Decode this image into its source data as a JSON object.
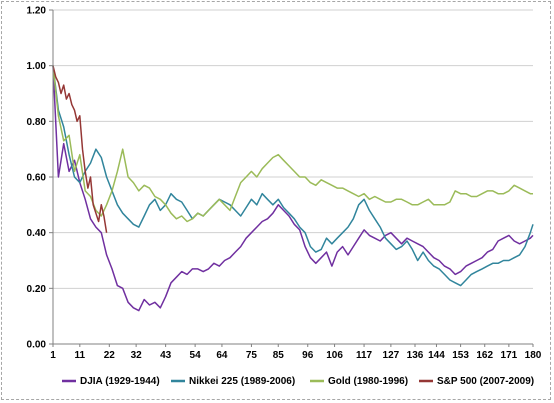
{
  "chart_data": {
    "type": "line",
    "title": "",
    "xlabel": "",
    "ylabel": "",
    "xlim": [
      1,
      180
    ],
    "ylim": [
      0,
      1.2
    ],
    "y_ticks": [
      0,
      0.2,
      0.4,
      0.6,
      0.8,
      1.0,
      1.2
    ],
    "y_tick_labels": [
      "0.00",
      "0.20",
      "0.40",
      "0.60",
      "0.80",
      "1.00",
      "1.20"
    ],
    "x_ticks": [
      1,
      11,
      22,
      32,
      43,
      54,
      64,
      75,
      85,
      96,
      106,
      117,
      127,
      136,
      144,
      153,
      162,
      171,
      180
    ],
    "x_tick_labels": [
      "1",
      "11",
      "22",
      "32",
      "43",
      "54",
      "64",
      "75",
      "85",
      "96",
      "106",
      "117",
      "127",
      "136",
      "144",
      "153",
      "162",
      "171",
      "180"
    ],
    "grid": "horizontal",
    "legend_position": "bottom",
    "series": [
      {
        "name": "DJIA (1929-1944)",
        "color": "#7030a0",
        "x": [
          1,
          3,
          5,
          7,
          9,
          11,
          13,
          15,
          17,
          19,
          21,
          23,
          25,
          27,
          29,
          31,
          33,
          35,
          37,
          39,
          41,
          43,
          45,
          47,
          49,
          51,
          53,
          55,
          57,
          59,
          61,
          63,
          65,
          67,
          69,
          71,
          73,
          75,
          77,
          79,
          81,
          83,
          85,
          87,
          89,
          91,
          93,
          95,
          97,
          99,
          101,
          103,
          105,
          107,
          109,
          111,
          113,
          115,
          117,
          119,
          121,
          123,
          125,
          127,
          129,
          131,
          133,
          135,
          137,
          139,
          141,
          143,
          145,
          147,
          149,
          151,
          153,
          155,
          157,
          159,
          161,
          163,
          165,
          167,
          169,
          171,
          173,
          175,
          177,
          179,
          180
        ],
        "y": [
          1.0,
          0.6,
          0.72,
          0.62,
          0.66,
          0.58,
          0.52,
          0.45,
          0.42,
          0.4,
          0.32,
          0.27,
          0.21,
          0.2,
          0.15,
          0.13,
          0.12,
          0.16,
          0.14,
          0.15,
          0.13,
          0.17,
          0.22,
          0.24,
          0.26,
          0.25,
          0.27,
          0.27,
          0.26,
          0.27,
          0.29,
          0.28,
          0.3,
          0.31,
          0.33,
          0.35,
          0.38,
          0.4,
          0.42,
          0.44,
          0.45,
          0.47,
          0.5,
          0.48,
          0.46,
          0.43,
          0.41,
          0.35,
          0.31,
          0.29,
          0.31,
          0.33,
          0.28,
          0.33,
          0.35,
          0.32,
          0.35,
          0.38,
          0.41,
          0.39,
          0.38,
          0.37,
          0.39,
          0.4,
          0.38,
          0.36,
          0.38,
          0.37,
          0.36,
          0.35,
          0.33,
          0.31,
          0.3,
          0.28,
          0.27,
          0.25,
          0.26,
          0.28,
          0.29,
          0.3,
          0.31,
          0.33,
          0.34,
          0.37,
          0.38,
          0.39,
          0.37,
          0.36,
          0.37,
          0.38,
          0.39
        ]
      },
      {
        "name": "Nikkei 225 (1989-2006)",
        "color": "#31859c",
        "x": [
          1,
          3,
          5,
          7,
          9,
          11,
          13,
          15,
          17,
          19,
          21,
          23,
          25,
          27,
          29,
          31,
          33,
          35,
          37,
          39,
          41,
          43,
          45,
          47,
          49,
          51,
          53,
          55,
          57,
          59,
          61,
          63,
          65,
          67,
          69,
          71,
          73,
          75,
          77,
          79,
          81,
          83,
          85,
          87,
          89,
          91,
          93,
          95,
          97,
          99,
          101,
          103,
          105,
          107,
          109,
          111,
          113,
          115,
          117,
          119,
          121,
          123,
          125,
          127,
          129,
          131,
          133,
          135,
          137,
          139,
          141,
          143,
          145,
          147,
          149,
          151,
          153,
          155,
          157,
          159,
          161,
          163,
          165,
          167,
          169,
          171,
          173,
          175,
          177,
          179,
          180
        ],
        "y": [
          1.0,
          0.84,
          0.78,
          0.68,
          0.6,
          0.58,
          0.62,
          0.65,
          0.7,
          0.67,
          0.6,
          0.55,
          0.5,
          0.47,
          0.45,
          0.43,
          0.42,
          0.46,
          0.5,
          0.52,
          0.48,
          0.5,
          0.54,
          0.52,
          0.51,
          0.48,
          0.45,
          0.47,
          0.46,
          0.48,
          0.5,
          0.52,
          0.51,
          0.5,
          0.48,
          0.46,
          0.49,
          0.52,
          0.5,
          0.54,
          0.52,
          0.5,
          0.52,
          0.49,
          0.47,
          0.45,
          0.42,
          0.4,
          0.35,
          0.33,
          0.34,
          0.38,
          0.36,
          0.38,
          0.4,
          0.42,
          0.45,
          0.5,
          0.52,
          0.48,
          0.45,
          0.42,
          0.38,
          0.36,
          0.34,
          0.35,
          0.37,
          0.34,
          0.3,
          0.33,
          0.3,
          0.28,
          0.27,
          0.25,
          0.23,
          0.22,
          0.21,
          0.23,
          0.25,
          0.26,
          0.27,
          0.28,
          0.29,
          0.29,
          0.3,
          0.3,
          0.31,
          0.32,
          0.35,
          0.4,
          0.43
        ]
      },
      {
        "name": "Gold (1980-1996)",
        "color": "#9bbb59",
        "x": [
          1,
          3,
          5,
          7,
          9,
          11,
          13,
          15,
          17,
          19,
          21,
          23,
          25,
          27,
          29,
          31,
          33,
          35,
          37,
          39,
          41,
          43,
          45,
          47,
          49,
          51,
          53,
          55,
          57,
          59,
          61,
          63,
          65,
          67,
          69,
          71,
          73,
          75,
          77,
          79,
          81,
          83,
          85,
          87,
          89,
          91,
          93,
          95,
          97,
          99,
          101,
          103,
          105,
          107,
          109,
          111,
          113,
          115,
          117,
          119,
          121,
          123,
          125,
          127,
          129,
          131,
          133,
          135,
          137,
          139,
          141,
          143,
          145,
          147,
          149,
          151,
          153,
          155,
          157,
          159,
          161,
          163,
          165,
          167,
          169,
          171,
          173,
          175,
          177,
          179,
          180
        ],
        "y": [
          1.0,
          0.82,
          0.73,
          0.75,
          0.62,
          0.68,
          0.55,
          0.53,
          0.48,
          0.46,
          0.5,
          0.55,
          0.62,
          0.7,
          0.6,
          0.58,
          0.55,
          0.57,
          0.56,
          0.53,
          0.52,
          0.5,
          0.47,
          0.45,
          0.46,
          0.44,
          0.45,
          0.47,
          0.46,
          0.48,
          0.5,
          0.52,
          0.5,
          0.48,
          0.53,
          0.58,
          0.6,
          0.62,
          0.6,
          0.63,
          0.65,
          0.67,
          0.68,
          0.66,
          0.64,
          0.62,
          0.6,
          0.6,
          0.58,
          0.57,
          0.59,
          0.58,
          0.57,
          0.56,
          0.56,
          0.55,
          0.54,
          0.53,
          0.54,
          0.52,
          0.53,
          0.52,
          0.51,
          0.51,
          0.52,
          0.52,
          0.51,
          0.5,
          0.5,
          0.51,
          0.52,
          0.5,
          0.5,
          0.5,
          0.51,
          0.55,
          0.54,
          0.54,
          0.53,
          0.53,
          0.54,
          0.55,
          0.55,
          0.54,
          0.54,
          0.55,
          0.57,
          0.56,
          0.55,
          0.54,
          0.54
        ]
      },
      {
        "name": "S&P 500 (2007-2009)",
        "color": "#953735",
        "x": [
          1,
          2,
          3,
          4,
          5,
          6,
          7,
          8,
          9,
          10,
          11,
          12,
          13,
          14,
          15,
          16,
          17,
          18,
          19,
          20,
          21
        ],
        "y": [
          1.0,
          0.96,
          0.94,
          0.9,
          0.93,
          0.88,
          0.9,
          0.86,
          0.84,
          0.8,
          0.82,
          0.7,
          0.62,
          0.56,
          0.6,
          0.5,
          0.47,
          0.44,
          0.5,
          0.46,
          0.4
        ]
      }
    ]
  }
}
